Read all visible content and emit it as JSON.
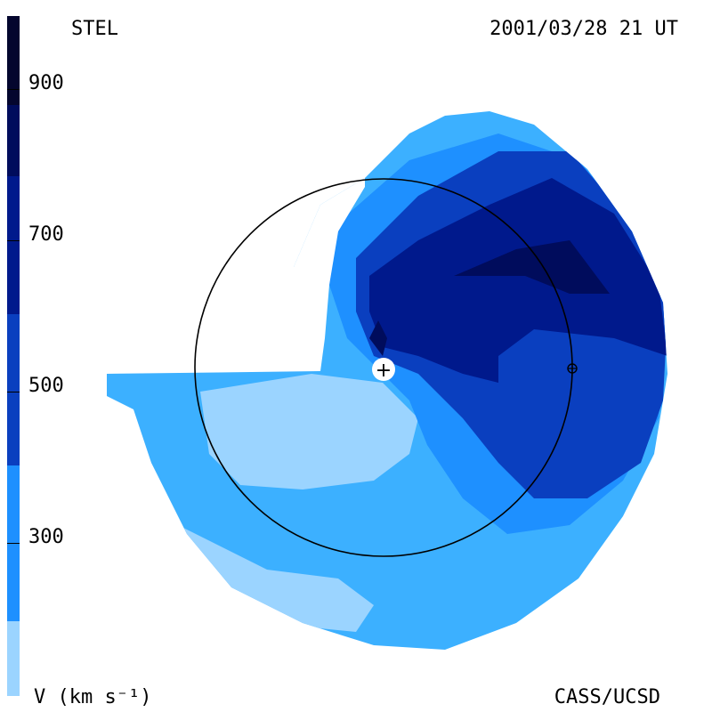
{
  "header": {
    "station": "STEL",
    "datetime": "2001/03/28 21 UT"
  },
  "footer": {
    "units": "V (km s⁻¹)",
    "credit": "CASS/UCSD"
  },
  "colorbar": {
    "ticks": [
      "900",
      "700",
      "500",
      "300"
    ],
    "levels_km_s": [
      900,
      700,
      500,
      300
    ],
    "colors": [
      "#04062e",
      "#000c5c",
      "#00198c",
      "#0a3fbf",
      "#1667d6",
      "#1e90ff",
      "#3cb0ff",
      "#9bd4ff"
    ]
  },
  "map": {
    "sun_symbol": "+",
    "earth_symbol": "⊕",
    "orbit": "Earth orbit (1 AU)"
  }
}
